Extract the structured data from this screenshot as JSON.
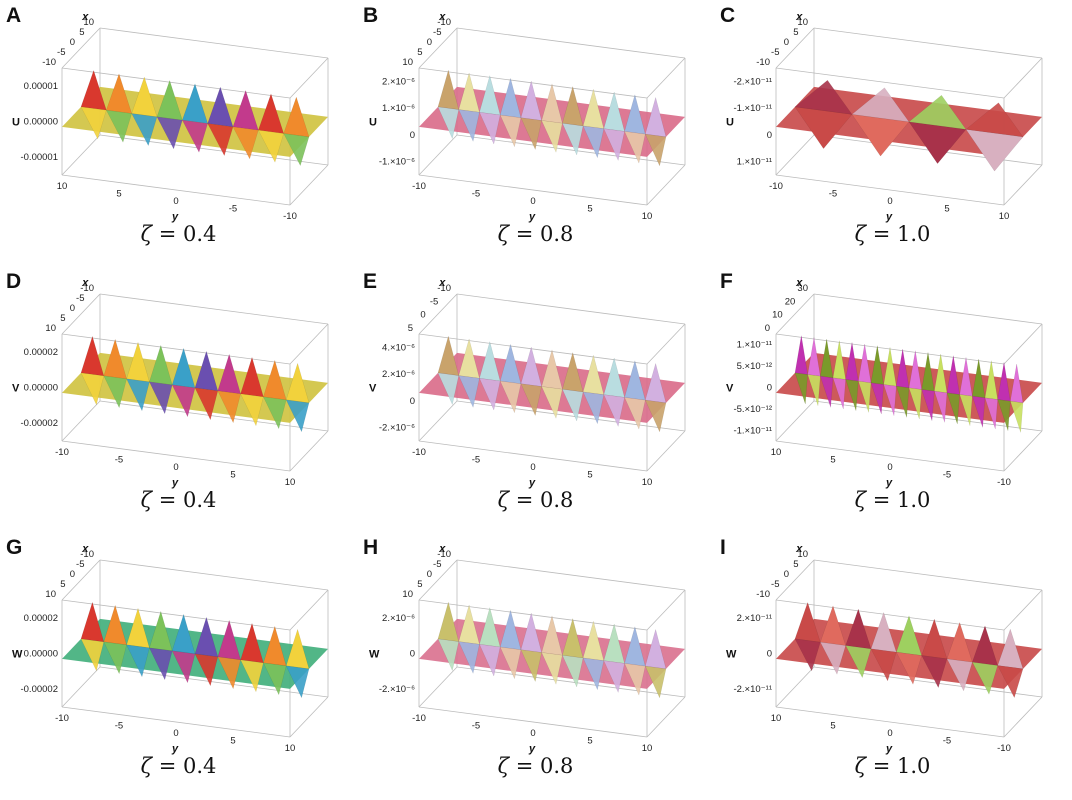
{
  "chart_data": [
    {
      "type": "surface3d",
      "panel": "A",
      "caption_var": "ζ",
      "caption_value": "= 0.4",
      "zlabel": "U",
      "xlabel": "x",
      "ylabel": "y",
      "x_ticks": [
        "-10",
        "-5",
        "0",
        "5",
        "10"
      ],
      "y_ticks": [
        "10",
        "5",
        "0",
        "-5",
        "-10"
      ],
      "z_ticks": [
        "0.00001",
        "0.00000",
        "-0.00001"
      ],
      "style": "rainbow",
      "oscillations": 9,
      "amplitude_sign": 1
    },
    {
      "type": "surface3d",
      "panel": "B",
      "caption_var": "ζ",
      "caption_value": "= 0.8",
      "zlabel": "U",
      "xlabel": "x",
      "ylabel": "y",
      "x_ticks": [
        "10",
        "5",
        "0",
        "-5",
        "-10"
      ],
      "y_ticks": [
        "-10",
        "-5",
        "0",
        "5",
        "10"
      ],
      "z_ticks": [
        "2.×10⁻⁶",
        "1.×10⁻⁶",
        "0",
        "-1.×10⁻⁶"
      ],
      "style": "pastel",
      "oscillations": 11,
      "amplitude_sign": 1
    },
    {
      "type": "surface3d",
      "panel": "C",
      "caption_var": "ζ",
      "caption_value": "= 1.0",
      "zlabel": "U",
      "xlabel": "x",
      "ylabel": "y",
      "x_ticks": [
        "-10",
        "-5",
        "0",
        "5",
        "10"
      ],
      "y_ticks": [
        "-10",
        "-5",
        "0",
        "5",
        "10"
      ],
      "z_ticks": [
        "-2.×10⁻¹¹",
        "-1.×10⁻¹¹",
        "0",
        "1.×10⁻¹¹"
      ],
      "style": "red",
      "oscillations": 4,
      "amplitude_sign": -1
    },
    {
      "type": "surface3d",
      "panel": "D",
      "caption_var": "ζ",
      "caption_value": "= 0.4",
      "zlabel": "V",
      "xlabel": "x",
      "ylabel": "y",
      "x_ticks": [
        "10",
        "5",
        "0",
        "-5",
        "-10"
      ],
      "y_ticks": [
        "-10",
        "-5",
        "0",
        "5",
        "10"
      ],
      "z_ticks": [
        "0.00002",
        "0.00000",
        "-0.00002"
      ],
      "style": "rainbow",
      "oscillations": 10,
      "amplitude_sign": 1
    },
    {
      "type": "surface3d",
      "panel": "E",
      "caption_var": "ζ",
      "caption_value": "= 0.8",
      "zlabel": "V",
      "xlabel": "x",
      "ylabel": "y",
      "x_ticks": [
        "5",
        "0",
        "-5",
        "-10"
      ],
      "y_ticks": [
        "-10",
        "-5",
        "0",
        "5",
        "10"
      ],
      "z_ticks": [
        "4.×10⁻⁶",
        "2.×10⁻⁶",
        "0",
        "-2.×10⁻⁶"
      ],
      "style": "pastel",
      "oscillations": 11,
      "amplitude_sign": 1
    },
    {
      "type": "surface3d",
      "panel": "F",
      "caption_var": "ζ",
      "caption_value": "= 1.0",
      "zlabel": "V",
      "xlabel": "x",
      "ylabel": "y",
      "x_ticks": [
        "0",
        "10",
        "20",
        "30"
      ],
      "y_ticks": [
        "10",
        "5",
        "0",
        "-5",
        "-10"
      ],
      "z_ticks": [
        "1.×10⁻¹¹",
        "5.×10⁻¹²",
        "0",
        "-5.×10⁻¹²",
        "-1.×10⁻¹¹"
      ],
      "style": "magenta",
      "oscillations": 18,
      "amplitude_sign": 1
    },
    {
      "type": "surface3d",
      "panel": "G",
      "caption_var": "ζ",
      "caption_value": "= 0.4",
      "zlabel": "W",
      "xlabel": "x",
      "ylabel": "y",
      "x_ticks": [
        "10",
        "5",
        "0",
        "-5",
        "-10"
      ],
      "y_ticks": [
        "-10",
        "-5",
        "0",
        "5",
        "10"
      ],
      "z_ticks": [
        "0.00002",
        "0.00000",
        "-0.00002"
      ],
      "style": "rainbow-green",
      "oscillations": 10,
      "amplitude_sign": 1
    },
    {
      "type": "surface3d",
      "panel": "H",
      "caption_var": "ζ",
      "caption_value": "= 0.8",
      "zlabel": "W",
      "xlabel": "x",
      "ylabel": "y",
      "x_ticks": [
        "10",
        "5",
        "0",
        "-5",
        "-10"
      ],
      "y_ticks": [
        "-10",
        "-5",
        "0",
        "5",
        "10"
      ],
      "z_ticks": [
        "2.×10⁻⁶",
        "0",
        "-2.×10⁻⁶"
      ],
      "style": "pastel-pink",
      "oscillations": 11,
      "amplitude_sign": 1
    },
    {
      "type": "surface3d",
      "panel": "I",
      "caption_var": "ζ",
      "caption_value": "= 1.0",
      "zlabel": "W",
      "xlabel": "x",
      "ylabel": "y",
      "x_ticks": [
        "-10",
        "-5",
        "0",
        "5",
        "10"
      ],
      "y_ticks": [
        "10",
        "5",
        "0",
        "-5",
        "-10"
      ],
      "z_ticks": [
        "2.×10⁻¹¹",
        "0",
        "-2.×10⁻¹¹"
      ],
      "style": "red",
      "oscillations": 9,
      "amplitude_sign": 1
    }
  ],
  "colors": {
    "rainbow": [
      "#d9382e",
      "#f08a2c",
      "#f2d23c",
      "#7cc25a",
      "#3aa0c8",
      "#6a4fb0",
      "#c23a8c"
    ],
    "pastel": [
      "#c9a36b",
      "#e8e0a0",
      "#b9dde0",
      "#9fb6e0",
      "#d2b0e0",
      "#e8c8a8"
    ],
    "red": [
      "#c94a48",
      "#e06a5e",
      "#a8324a",
      "#d8b0c0",
      "#9ed060"
    ],
    "magenta": [
      "#c030b0",
      "#e070d8",
      "#7a9a2a",
      "#c8e060"
    ],
    "surface_flat": {
      "rainbow": "#cfc23e",
      "pastel": "#d96a88",
      "red": "#c84848",
      "magenta": "#c84848",
      "rainbow-green": "#3fae7a",
      "pastel-pink": "#d9708e"
    }
  }
}
